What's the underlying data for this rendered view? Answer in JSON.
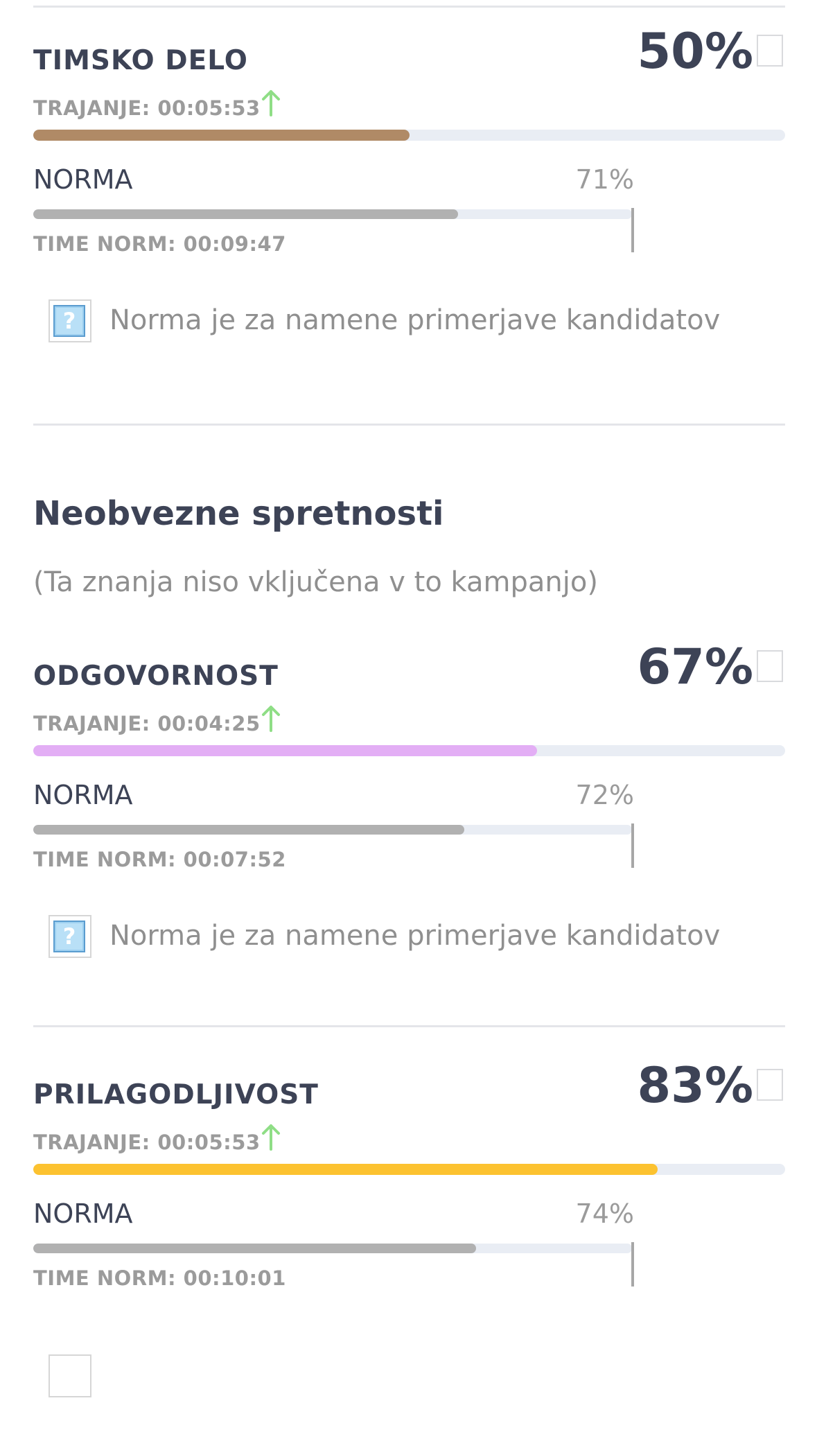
{
  "section": {
    "title": "Neobvezne spretnosti",
    "subtitle": "(Ta znanja niso vključena v to kampanjo)"
  },
  "help_text": "Norma je za namene primerjave kandidatov",
  "norma_label": "NORMA",
  "skills": [
    {
      "title": "TIMSKO DELO",
      "percent_text": "50%",
      "score_fraction": 0.5,
      "duration_text": "TRAJANJE: 00:05:53",
      "bar_color": "#b08a66",
      "norm_percent_text": "71%",
      "norm_fraction": 0.71,
      "time_norm_text": "TIME NORM: 00:09:47"
    },
    {
      "title": "ODGOVORNOST",
      "percent_text": "67%",
      "score_fraction": 0.67,
      "duration_text": "TRAJANJE: 00:04:25",
      "bar_color": "#e3aef5",
      "norm_percent_text": "72%",
      "norm_fraction": 0.72,
      "time_norm_text": "TIME NORM: 00:07:52"
    },
    {
      "title": "PRILAGODLJIVOST",
      "percent_text": "83%",
      "score_fraction": 0.83,
      "duration_text": "TRAJANJE: 00:05:53",
      "bar_color": "#fcc230",
      "norm_percent_text": "74%",
      "norm_fraction": 0.74,
      "time_norm_text": "TIME NORM: 00:10:01"
    }
  ],
  "colors": {
    "arrow_up": "#8fde86",
    "norm_bar": "#b1b1b1",
    "track": "#e9edf4"
  },
  "icons": {
    "trend": "arrow-up-icon",
    "help": "question-mark-icon"
  }
}
